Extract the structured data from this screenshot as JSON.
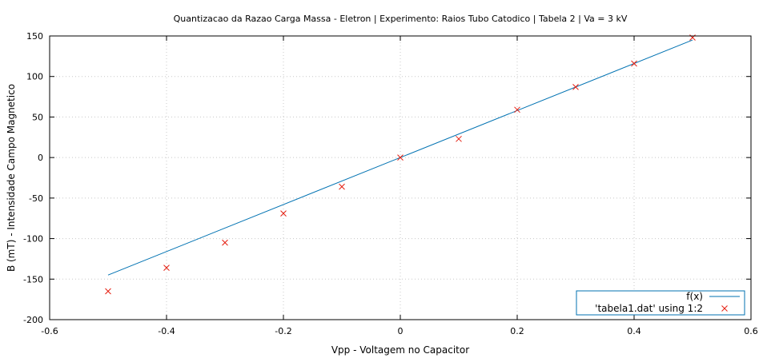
{
  "chart_data": {
    "type": "scatter",
    "title": "Quantizacao da Razao Carga Massa - Eletron | Experimento: Raios Tubo Catodico | Tabela 2 | Va = 3 kV",
    "xlabel": "Vpp - Voltagem no Capacitor",
    "ylabel": "B (mT) - Intensidade Campo Magnetico",
    "xlim": [
      -0.6,
      0.6
    ],
    "ylim": [
      -200,
      150
    ],
    "xticks": [
      -0.6,
      -0.4,
      -0.2,
      0,
      0.2,
      0.4,
      0.6
    ],
    "yticks": [
      -200,
      -150,
      -100,
      -50,
      0,
      50,
      100,
      150
    ],
    "xtick_labels": [
      "-0.6",
      "-0.4",
      "-0.2",
      "0",
      "0.2",
      "0.4",
      "0.6"
    ],
    "ytick_labels": [
      "-200",
      "-150",
      "-100",
      "-50",
      "0",
      "50",
      "100",
      "150"
    ],
    "grid": true,
    "legend_position": "bottom-right",
    "series": [
      {
        "name": "f(x)",
        "kind": "line",
        "color": "#0072b2",
        "x": [
          -0.5,
          0.5
        ],
        "y": [
          -145,
          145
        ]
      },
      {
        "name": "'tabela1.dat' using 1:2",
        "kind": "points",
        "marker": "x",
        "color": "#e51e10",
        "x": [
          -0.5,
          -0.4,
          -0.3,
          -0.2,
          -0.1,
          0,
          0.1,
          0.2,
          0.3,
          0.4,
          0.5
        ],
        "y": [
          -165,
          -136,
          -105,
          -69,
          -36,
          0,
          23,
          59,
          87,
          116,
          148
        ]
      }
    ]
  }
}
